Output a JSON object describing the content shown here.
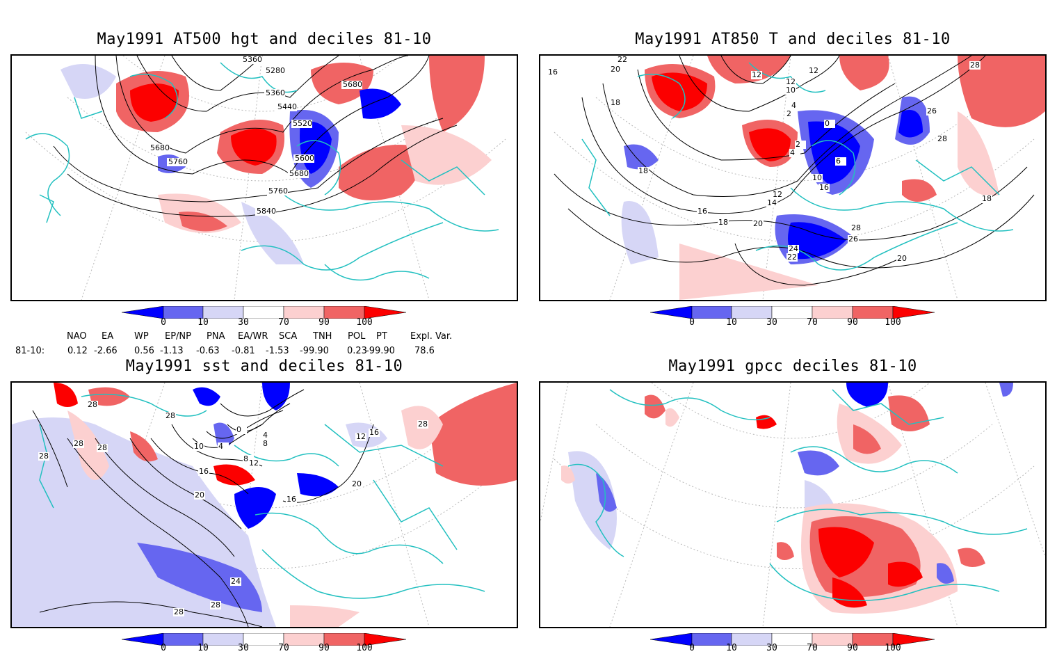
{
  "panels": [
    {
      "title": "May1991 AT500 hgt and deciles 81-10",
      "contour_labels": [
        "5360",
        "5280",
        "5680",
        "5360",
        "5440",
        "5520",
        "5680",
        "5760",
        "5600",
        "5680",
        "5760",
        "5840"
      ]
    },
    {
      "title": "May1991 AT850 T and deciles 81-10",
      "contour_labels": [
        "22",
        "20",
        "16",
        "18",
        "12",
        "12",
        "12",
        "10",
        "4",
        "2",
        "0",
        "2",
        "4",
        "6",
        "10",
        "16",
        "18",
        "12",
        "14",
        "16",
        "18",
        "20",
        "24",
        "22",
        "28",
        "26",
        "20",
        "28",
        "26",
        "28",
        "18"
      ]
    },
    {
      "title": "May1991 sst and deciles 81-10",
      "contour_labels": [
        "28",
        "28",
        "28",
        "28",
        "28",
        "10",
        "4",
        "0",
        "4",
        "8",
        "8",
        "12",
        "16",
        "20",
        "16",
        "20",
        "12",
        "16",
        "28",
        "24",
        "28",
        "28"
      ]
    },
    {
      "title": "May1991 gpcc deciles 81-10",
      "contour_labels": []
    }
  ],
  "colorbar": {
    "labels": [
      "0",
      "10",
      "30",
      "70",
      "90",
      "100"
    ],
    "colors": [
      "#0000ff",
      "#6666f0",
      "#d6d6f6",
      "#ffffff",
      "#fcd0d0",
      "#f06464",
      "#fc0000"
    ]
  },
  "indices": {
    "row_label": "81-10:",
    "headers": [
      "NAO",
      "EA",
      "WP",
      "EP/NP",
      "PNA",
      "EA/WR",
      "SCA",
      "TNH",
      "POL",
      "PT",
      "Expl. Var."
    ],
    "values": [
      "0.12",
      "-2.66",
      "0.56",
      "-1.13",
      "-0.63",
      "-0.81",
      "-1.53",
      "-99.90",
      "0.23",
      "-99.90",
      "78.6"
    ]
  },
  "colors": {
    "coast": "#22c0c0",
    "contour": "#000000",
    "blue_strong": "#0000ff",
    "blue_mid": "#6666f0",
    "blue_light": "#d6d6f6",
    "red_light": "#fcd0d0",
    "red_mid": "#f06464",
    "red_strong": "#fc0000"
  }
}
